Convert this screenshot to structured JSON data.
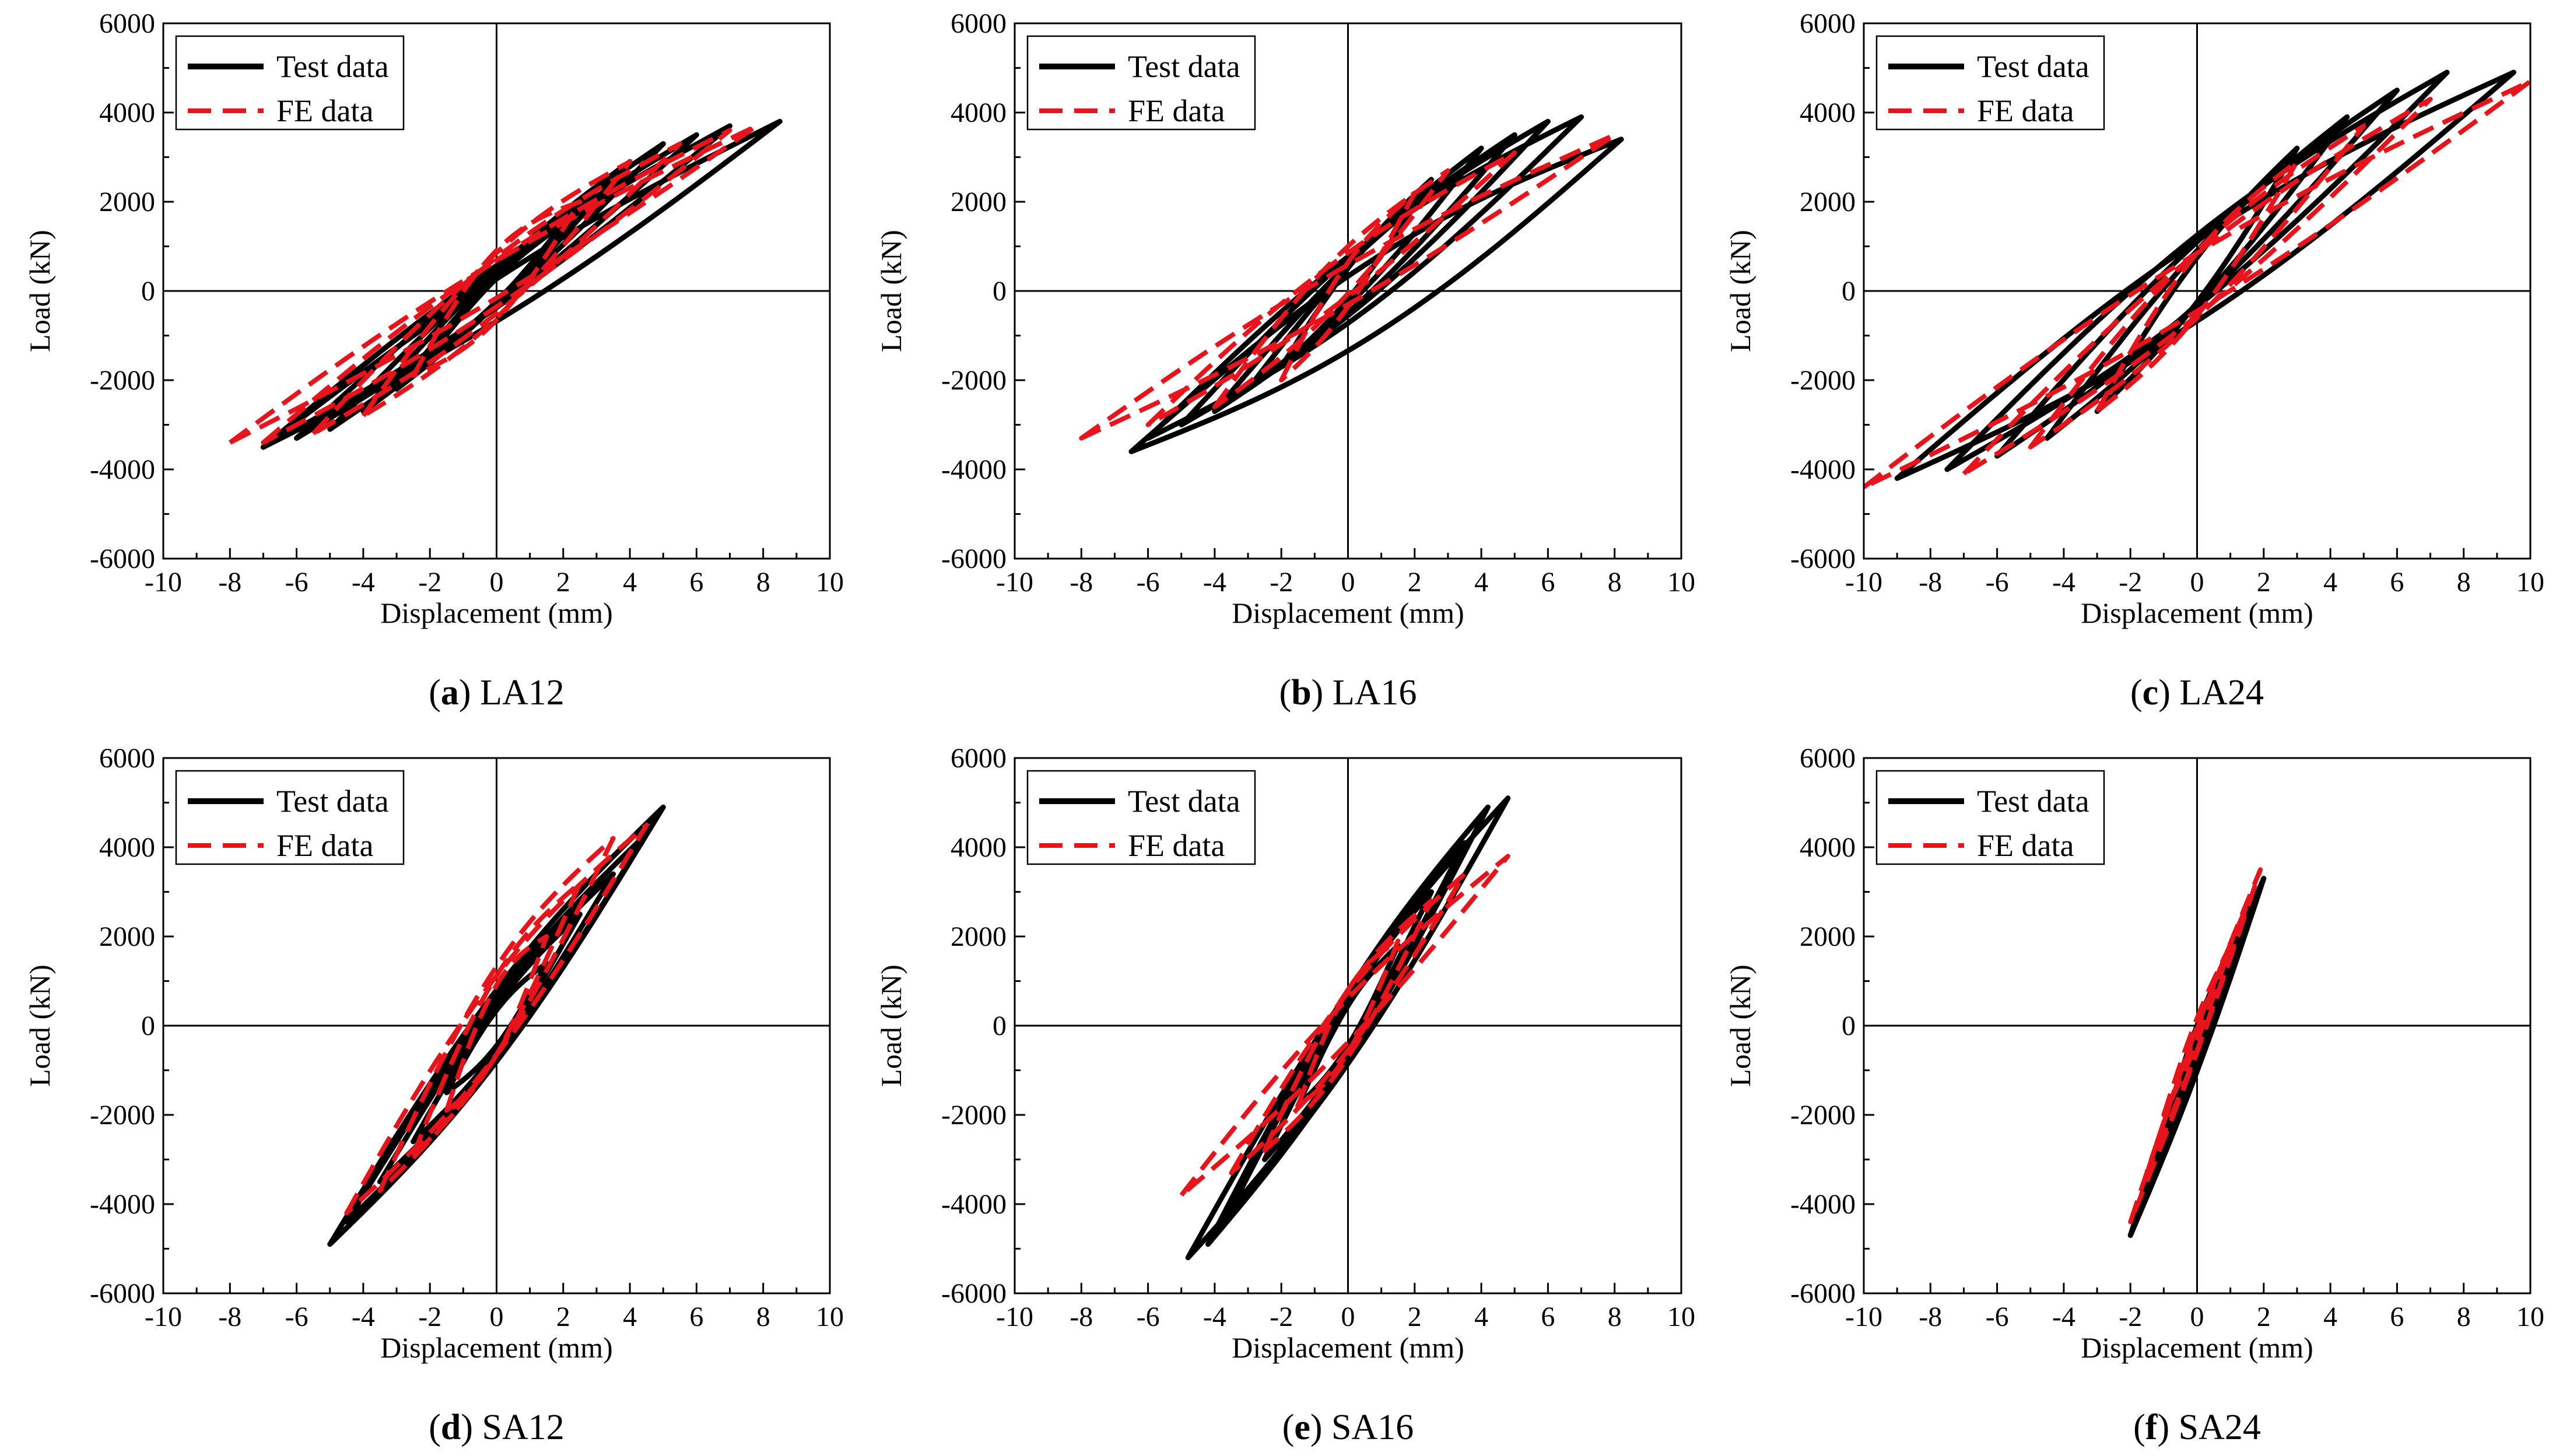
{
  "figure": {
    "background": "#ffffff",
    "test_color": "#000000",
    "fe_color": "#e8141b"
  },
  "chart_data": [
    {
      "type": "line",
      "id": "a",
      "caption_label": "a",
      "caption_text": "LA12",
      "xlabel": "Displacement (mm)",
      "ylabel": "Load (kN)",
      "xlim": [
        -10,
        10
      ],
      "ylim": [
        -6000,
        6000
      ],
      "xticks": [
        "-10",
        "-8",
        "-6",
        "-4",
        "-2",
        "0",
        "2",
        "4",
        "6",
        "8",
        "10"
      ],
      "yticks": [
        "-6000",
        "-4000",
        "-2000",
        "0",
        "2000",
        "4000",
        "6000"
      ],
      "legend": {
        "position": "top-left",
        "entries": [
          "Test data",
          "FE data"
        ]
      },
      "series": [
        {
          "name": "Test data",
          "cycles": [
            {
              "pos_end": [
                2,
                1500
              ],
              "neg_end": [
                -2,
                -1450
              ],
              "a": 260,
              "b": 260
            },
            {
              "pos_end": [
                3,
                2300
              ],
              "neg_end": [
                -3,
                -2200
              ],
              "a": 330,
              "b": 330
            },
            {
              "pos_end": [
                4,
                2900
              ],
              "neg_end": [
                -4,
                -2700
              ],
              "a": 380,
              "b": 380
            },
            {
              "pos_end": [
                5,
                3300
              ],
              "neg_end": [
                -5,
                -3100
              ],
              "a": 420,
              "b": 420
            },
            {
              "pos_end": [
                6,
                3500
              ],
              "neg_end": [
                -6,
                -3300
              ],
              "a": 450,
              "b": 450
            },
            {
              "pos_end": [
                7,
                3700
              ],
              "neg_end": [
                -7,
                -3500
              ],
              "a": 470,
              "b": 470
            },
            {
              "pos_end": [
                8.5,
                3800
              ],
              "neg_end": [
                -7,
                -3500
              ],
              "a": 480,
              "b": 480
            }
          ]
        },
        {
          "name": "FE data",
          "cycles": [
            {
              "pos_end": [
                2.5,
                2000
              ],
              "neg_end": [
                -2.5,
                -1900
              ],
              "a": 800,
              "b": 700
            },
            {
              "pos_end": [
                4,
                2900
              ],
              "neg_end": [
                -4,
                -2800
              ],
              "a": 750,
              "b": 650
            },
            {
              "pos_end": [
                5.5,
                3300
              ],
              "neg_end": [
                -5.5,
                -3200
              ],
              "a": 650,
              "b": 550
            },
            {
              "pos_end": [
                7,
                3600
              ],
              "neg_end": [
                -7,
                -3400
              ],
              "a": 550,
              "b": 450
            },
            {
              "pos_end": [
                7.8,
                3700
              ],
              "neg_end": [
                -8,
                -3400
              ],
              "a": 450,
              "b": 350
            }
          ]
        }
      ]
    },
    {
      "type": "line",
      "id": "b",
      "caption_label": "b",
      "caption_text": "LA16",
      "xlabel": "Displacement (mm)",
      "ylabel": "Load (kN)",
      "xlim": [
        -10,
        10
      ],
      "ylim": [
        -6000,
        6000
      ],
      "xticks": [
        "-10",
        "-8",
        "-6",
        "-4",
        "-2",
        "0",
        "2",
        "4",
        "6",
        "8",
        "10"
      ],
      "yticks": [
        "-6000",
        "-4000",
        "-2000",
        "0",
        "2000",
        "4000",
        "6000"
      ],
      "legend": {
        "position": "top-left",
        "entries": [
          "Test data",
          "FE data"
        ]
      },
      "series": [
        {
          "name": "Test data",
          "cycles": [
            {
              "pos_end": [
                2.5,
                2500
              ],
              "neg_end": [
                -2,
                -1700
              ],
              "a": 350,
              "b": 350
            },
            {
              "pos_end": [
                4,
                3200
              ],
              "neg_end": [
                -3,
                -2200
              ],
              "a": 450,
              "b": 450
            },
            {
              "pos_end": [
                5,
                3500
              ],
              "neg_end": [
                -4,
                -2700
              ],
              "a": 550,
              "b": 550
            },
            {
              "pos_end": [
                6,
                3800
              ],
              "neg_end": [
                -5,
                -3000
              ],
              "a": 650,
              "b": 650
            },
            {
              "pos_end": [
                7,
                3900
              ],
              "neg_end": [
                -6,
                -3300
              ],
              "a": 750,
              "b": 750
            },
            {
              "pos_end": [
                8.2,
                3400
              ],
              "neg_end": [
                -6.5,
                -3600
              ],
              "a": 850,
              "b": 850
            }
          ]
        },
        {
          "name": "FE data",
          "cycles": [
            {
              "pos_end": [
                2,
                2200
              ],
              "neg_end": [
                -2,
                -2000
              ],
              "a": 500,
              "b": 450
            },
            {
              "pos_end": [
                3,
                2700
              ],
              "neg_end": [
                -4,
                -2600
              ],
              "a": 550,
              "b": 500
            },
            {
              "pos_end": [
                5,
                3100
              ],
              "neg_end": [
                -6,
                -3000
              ],
              "a": 500,
              "b": 450
            },
            {
              "pos_end": [
                8,
                3500
              ],
              "neg_end": [
                -8,
                -3300
              ],
              "a": 450,
              "b": 400
            }
          ]
        }
      ]
    },
    {
      "type": "line",
      "id": "c",
      "caption_label": "c",
      "caption_text": "LA24",
      "xlabel": "Displacement (mm)",
      "ylabel": "Load (kN)",
      "xlim": [
        -10,
        10
      ],
      "ylim": [
        -6000,
        6000
      ],
      "xticks": [
        "-10",
        "-8",
        "-6",
        "-4",
        "-2",
        "0",
        "2",
        "4",
        "6",
        "8",
        "10"
      ],
      "yticks": [
        "-6000",
        "-4000",
        "-2000",
        "0",
        "2000",
        "4000",
        "6000"
      ],
      "legend": {
        "position": "top-left",
        "entries": [
          "Test data",
          "FE data"
        ]
      },
      "series": [
        {
          "name": "Test data",
          "cycles": [
            {
              "pos_end": [
                3,
                3200
              ],
              "neg_end": [
                -3,
                -2700
              ],
              "a": 500,
              "b": 500
            },
            {
              "pos_end": [
                4.5,
                3900
              ],
              "neg_end": [
                -4.5,
                -3300
              ],
              "a": 600,
              "b": 600
            },
            {
              "pos_end": [
                6,
                4500
              ],
              "neg_end": [
                -6,
                -3700
              ],
              "a": 700,
              "b": 700
            },
            {
              "pos_end": [
                7.5,
                4900
              ],
              "neg_end": [
                -7.5,
                -4000
              ],
              "a": 800,
              "b": 800
            },
            {
              "pos_end": [
                9.5,
                4900
              ],
              "neg_end": [
                -9,
                -4200
              ],
              "a": 900,
              "b": 900
            }
          ]
        },
        {
          "name": "FE data",
          "cycles": [
            {
              "pos_end": [
                3,
                2900
              ],
              "neg_end": [
                -3,
                -2700
              ],
              "a": 700,
              "b": 650
            },
            {
              "pos_end": [
                5,
                3700
              ],
              "neg_end": [
                -5,
                -3500
              ],
              "a": 750,
              "b": 700
            },
            {
              "pos_end": [
                7,
                4300
              ],
              "neg_end": [
                -7,
                -4100
              ],
              "a": 700,
              "b": 650
            },
            {
              "pos_end": [
                10,
                4700
              ],
              "neg_end": [
                -10,
                -4400
              ],
              "a": 650,
              "b": 600
            }
          ]
        }
      ]
    },
    {
      "type": "line",
      "id": "d",
      "caption_label": "d",
      "caption_text": "SA12",
      "xlabel": "Displacement (mm)",
      "ylabel": "Load (kN)",
      "xlim": [
        -10,
        10
      ],
      "ylim": [
        -6000,
        6000
      ],
      "xticks": [
        "-10",
        "-8",
        "-6",
        "-4",
        "-2",
        "0",
        "2",
        "4",
        "6",
        "8",
        "10"
      ],
      "yticks": [
        "-6000",
        "-4000",
        "-2000",
        "0",
        "2000",
        "4000",
        "6000"
      ],
      "legend": {
        "position": "top-left",
        "entries": [
          "Test data",
          "FE data"
        ]
      },
      "series": [
        {
          "name": "Test data",
          "cycles": [
            {
              "pos_end": [
                1.5,
                1400
              ],
              "neg_end": [
                -1.5,
                -1500
              ],
              "a": 400,
              "b": 400
            },
            {
              "pos_end": [
                2.5,
                2500
              ],
              "neg_end": [
                -2.5,
                -2600
              ],
              "a": 500,
              "b": 500
            },
            {
              "pos_end": [
                3.5,
                3400
              ],
              "neg_end": [
                -3.5,
                -3500
              ],
              "a": 600,
              "b": 600
            },
            {
              "pos_end": [
                4.5,
                4300
              ],
              "neg_end": [
                -4.5,
                -4400
              ],
              "a": 700,
              "b": 700
            },
            {
              "pos_end": [
                5,
                4900
              ],
              "neg_end": [
                -5,
                -4900
              ],
              "a": 800,
              "b": 800
            }
          ]
        },
        {
          "name": "FE data",
          "cycles": [
            {
              "pos_end": [
                1.5,
                2000
              ],
              "neg_end": [
                -1.5,
                -1900
              ],
              "a": 800,
              "b": 700
            },
            {
              "pos_end": [
                2.5,
                3200
              ],
              "neg_end": [
                -2.5,
                -2900
              ],
              "a": 900,
              "b": 800
            },
            {
              "pos_end": [
                3.5,
                4200
              ],
              "neg_end": [
                -3.5,
                -3700
              ],
              "a": 1000,
              "b": 900
            },
            {
              "pos_end": [
                4.5,
                4500
              ],
              "neg_end": [
                -4.5,
                -4200
              ],
              "a": 900,
              "b": 800
            }
          ]
        }
      ]
    },
    {
      "type": "line",
      "id": "e",
      "caption_label": "e",
      "caption_text": "SA16",
      "xlabel": "Displacement (mm)",
      "ylabel": "Load (kN)",
      "xlim": [
        -10,
        10
      ],
      "ylim": [
        -6000,
        6000
      ],
      "xticks": [
        "-10",
        "-8",
        "-6",
        "-4",
        "-2",
        "0",
        "2",
        "4",
        "6",
        "8",
        "10"
      ],
      "yticks": [
        "-6000",
        "-4000",
        "-2000",
        "0",
        "2000",
        "4000",
        "6000"
      ],
      "legend": {
        "position": "top-left",
        "entries": [
          "Test data",
          "FE data"
        ]
      },
      "series": [
        {
          "name": "Test data",
          "cycles": [
            {
              "pos_end": [
                1.5,
                1800
              ],
              "neg_end": [
                -1.5,
                -1800
              ],
              "a": 450,
              "b": 450
            },
            {
              "pos_end": [
                2.5,
                3000
              ],
              "neg_end": [
                -2.5,
                -3000
              ],
              "a": 550,
              "b": 550
            },
            {
              "pos_end": [
                3.5,
                4100
              ],
              "neg_end": [
                -3.5,
                -4100
              ],
              "a": 650,
              "b": 650
            },
            {
              "pos_end": [
                4.2,
                4900
              ],
              "neg_end": [
                -4.2,
                -4900
              ],
              "a": 750,
              "b": 750
            },
            {
              "pos_end": [
                4.8,
                5100
              ],
              "neg_end": [
                -4.8,
                -5200
              ],
              "a": 800,
              "b": 800
            }
          ]
        },
        {
          "name": "FE data",
          "cycles": [
            {
              "pos_end": [
                1.5,
                1900
              ],
              "neg_end": [
                -1.5,
                -1800
              ],
              "a": 700,
              "b": 650
            },
            {
              "pos_end": [
                2.5,
                2800
              ],
              "neg_end": [
                -2.5,
                -2800
              ],
              "a": 750,
              "b": 700
            },
            {
              "pos_end": [
                3.5,
                3400
              ],
              "neg_end": [
                -3.5,
                -3300
              ],
              "a": 650,
              "b": 600
            },
            {
              "pos_end": [
                4.8,
                3800
              ],
              "neg_end": [
                -5,
                -3800
              ],
              "a": 500,
              "b": 450
            }
          ]
        }
      ]
    },
    {
      "type": "line",
      "id": "f",
      "caption_label": "f",
      "caption_text": "SA24",
      "xlabel": "Displacement (mm)",
      "ylabel": "Load (kN)",
      "xlim": [
        -10,
        10
      ],
      "ylim": [
        -6000,
        6000
      ],
      "xticks": [
        "-10",
        "-8",
        "-6",
        "-4",
        "-2",
        "0",
        "2",
        "4",
        "6",
        "8",
        "10"
      ],
      "yticks": [
        "-6000",
        "-4000",
        "-2000",
        "0",
        "2000",
        "4000",
        "6000"
      ],
      "legend": {
        "position": "top-left",
        "entries": [
          "Test data",
          "FE data"
        ]
      },
      "series": [
        {
          "name": "Test data",
          "cycles": [
            {
              "pos_end": [
                0.8,
                1400
              ],
              "neg_end": [
                -0.8,
                -1800
              ],
              "a": 200,
              "b": 200
            },
            {
              "pos_end": [
                1.3,
                2200
              ],
              "neg_end": [
                -1.3,
                -2900
              ],
              "a": 250,
              "b": 250
            },
            {
              "pos_end": [
                1.8,
                3000
              ],
              "neg_end": [
                -1.8,
                -4100
              ],
              "a": 300,
              "b": 300
            },
            {
              "pos_end": [
                2,
                3300
              ],
              "neg_end": [
                -2,
                -4700
              ],
              "a": 320,
              "b": 320
            }
          ]
        },
        {
          "name": "FE data",
          "cycles": [
            {
              "pos_end": [
                1,
                1800
              ],
              "neg_end": [
                -1,
                -2000
              ],
              "a": 250,
              "b": 250
            },
            {
              "pos_end": [
                1.5,
                2700
              ],
              "neg_end": [
                -1.5,
                -3300
              ],
              "a": 250,
              "b": 250
            },
            {
              "pos_end": [
                1.9,
                3500
              ],
              "neg_end": [
                -2,
                -4400
              ],
              "a": 250,
              "b": 250
            }
          ]
        }
      ]
    }
  ]
}
